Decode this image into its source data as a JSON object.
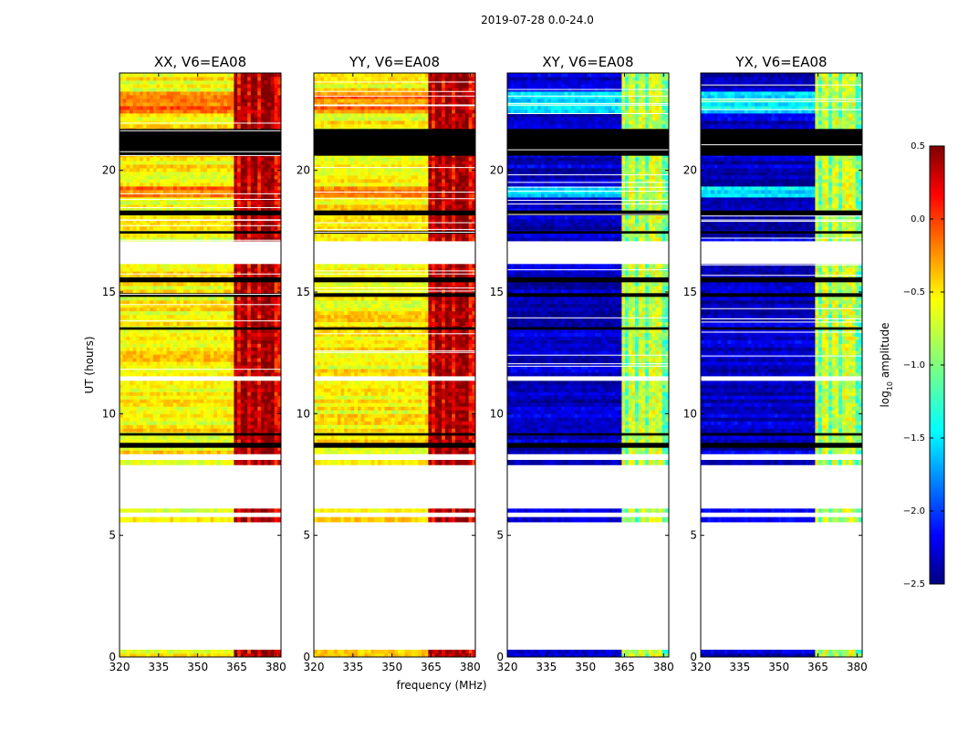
{
  "chart_data": {
    "type": "heatmap",
    "suptitle": "2019-07-28 0.0-24.0",
    "xlabel": "frequency (MHz)",
    "ylabel": "UT (hours)",
    "xlim": [
      320,
      382
    ],
    "ylim": [
      0,
      24
    ],
    "xticks": [
      320,
      335,
      350,
      365,
      380
    ],
    "yticks": [
      0,
      5,
      10,
      15,
      20
    ],
    "colorbar": {
      "label_prefix": "log",
      "label_sub": "10",
      "label_suffix": " amplitude",
      "vmin": -2.5,
      "vmax": 0.5,
      "ticks": [
        "0.5",
        "0.0",
        "−0.5",
        "−1.0",
        "−1.5",
        "−2.0",
        "−2.5"
      ],
      "tick_values": [
        0.5,
        0.0,
        -0.5,
        -1.0,
        -1.5,
        -2.0,
        -2.5
      ],
      "colormap": "jet"
    },
    "data_bands_ut": [
      [
        0.0,
        0.3
      ],
      [
        5.55,
        5.75
      ],
      [
        5.95,
        6.1
      ],
      [
        7.9,
        8.1
      ],
      [
        8.35,
        11.35
      ],
      [
        11.55,
        16.15
      ],
      [
        17.1,
        24.0
      ]
    ],
    "black_bands_ut": [
      [
        20.6,
        21.7
      ],
      [
        18.15,
        18.35
      ],
      [
        17.4,
        17.5
      ],
      [
        15.4,
        15.6
      ],
      [
        14.8,
        14.95
      ],
      [
        13.45,
        13.55
      ],
      [
        8.6,
        8.8
      ],
      [
        9.1,
        9.2
      ]
    ],
    "rfi_channels_mhz": [
      363,
      368,
      372,
      376,
      378
    ],
    "panels": [
      {
        "title": "XX, V6=EA08",
        "background_log10_amp": -0.6,
        "rfi_log10_amp": 0.2,
        "cross_pol": false
      },
      {
        "title": "YY, V6=EA08",
        "background_log10_amp": -0.6,
        "rfi_log10_amp": 0.2,
        "cross_pol": false
      },
      {
        "title": "XY, V6=EA08",
        "background_log10_amp": -2.3,
        "rfi_log10_amp": -1.0,
        "cross_pol": true
      },
      {
        "title": "YX, V6=EA08",
        "background_log10_amp": -2.3,
        "rfi_log10_amp": -1.0,
        "cross_pol": true
      }
    ]
  }
}
